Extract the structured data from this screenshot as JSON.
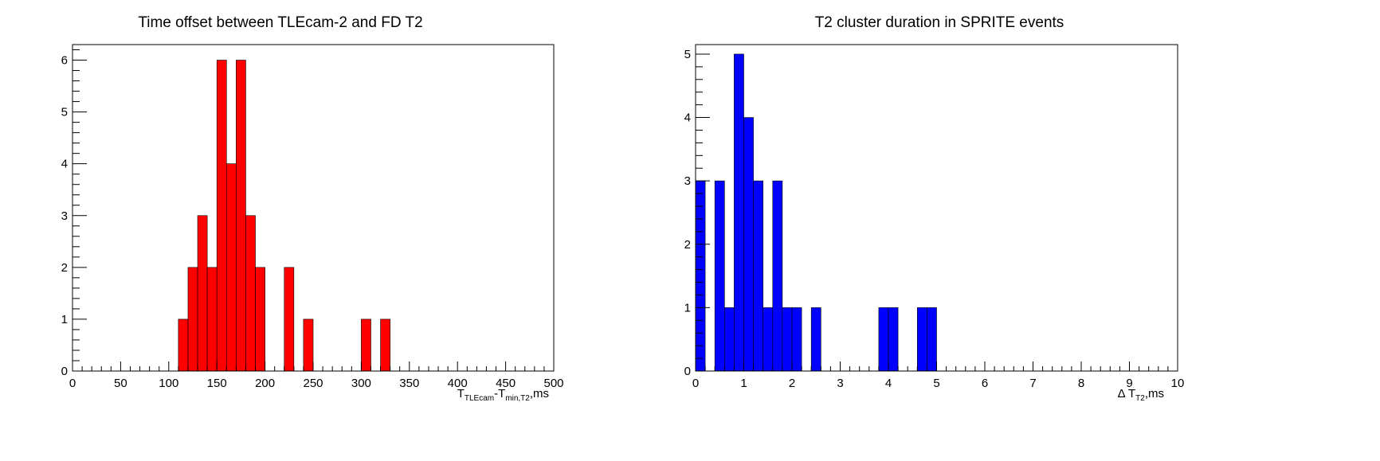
{
  "chart_data": [
    {
      "type": "histogram",
      "title": "Time offset between TLEcam-2 and FD T2",
      "xlabel": {
        "main": "T",
        "sub1": "TLEcam",
        "mid": "-T",
        "sub2": "min,T2",
        "tail": ",ms"
      },
      "ylabel": "",
      "color": "#ff0000",
      "xlim": [
        0,
        500
      ],
      "ylim": [
        0,
        6.3
      ],
      "xticks": [
        0,
        50,
        100,
        150,
        200,
        250,
        300,
        350,
        400,
        450,
        500
      ],
      "yticks": [
        0,
        1,
        2,
        3,
        4,
        5,
        6
      ],
      "bin_width": 10,
      "bins": [
        {
          "x0": 110,
          "count": 1
        },
        {
          "x0": 120,
          "count": 2
        },
        {
          "x0": 130,
          "count": 3
        },
        {
          "x0": 140,
          "count": 2
        },
        {
          "x0": 150,
          "count": 6
        },
        {
          "x0": 160,
          "count": 4
        },
        {
          "x0": 170,
          "count": 6
        },
        {
          "x0": 180,
          "count": 3
        },
        {
          "x0": 190,
          "count": 2
        },
        {
          "x0": 220,
          "count": 2
        },
        {
          "x0": 240,
          "count": 1
        },
        {
          "x0": 300,
          "count": 1
        },
        {
          "x0": 320,
          "count": 1
        }
      ]
    },
    {
      "type": "histogram",
      "title": "T2 cluster duration in SPRITE events",
      "xlabel": {
        "main": "Δ T",
        "sub1": "T2",
        "mid": "",
        "sub2": "",
        "tail": ",ms"
      },
      "ylabel": "",
      "color": "#0000ff",
      "xlim": [
        0,
        10
      ],
      "ylim": [
        0,
        5.15
      ],
      "xticks": [
        0,
        1,
        2,
        3,
        4,
        5,
        6,
        7,
        8,
        9,
        10
      ],
      "yticks": [
        0,
        1,
        2,
        3,
        4,
        5
      ],
      "bin_width": 0.2,
      "bins": [
        {
          "x0": 0.0,
          "count": 3
        },
        {
          "x0": 0.4,
          "count": 3
        },
        {
          "x0": 0.6,
          "count": 1
        },
        {
          "x0": 0.8,
          "count": 5
        },
        {
          "x0": 1.0,
          "count": 4
        },
        {
          "x0": 1.2,
          "count": 3
        },
        {
          "x0": 1.4,
          "count": 1
        },
        {
          "x0": 1.6,
          "count": 3
        },
        {
          "x0": 1.8,
          "count": 1
        },
        {
          "x0": 2.0,
          "count": 1
        },
        {
          "x0": 2.4,
          "count": 1
        },
        {
          "x0": 3.8,
          "count": 1
        },
        {
          "x0": 4.0,
          "count": 1
        },
        {
          "x0": 4.6,
          "count": 1
        },
        {
          "x0": 4.8,
          "count": 1
        }
      ]
    }
  ]
}
